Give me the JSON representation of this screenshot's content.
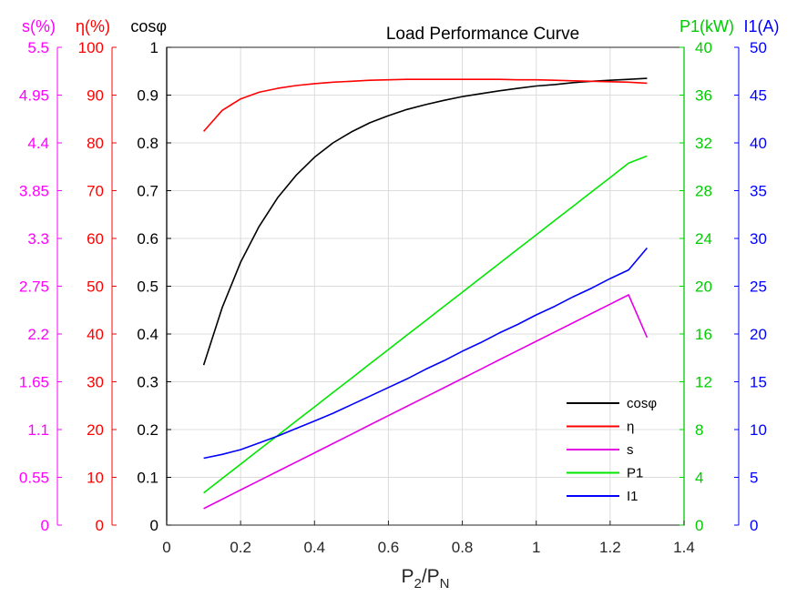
{
  "chart_data": {
    "type": "line",
    "title": "Load Performance Curve",
    "xlabel": {
      "base": "P",
      "sub1": "2",
      "sep": "/P",
      "sub2": "N"
    },
    "xlim": [
      0,
      1.4
    ],
    "xticks": [
      "0",
      "0.2",
      "0.4",
      "0.6",
      "0.8",
      "1",
      "1.2",
      "1.4"
    ],
    "grid": true,
    "legend_position": "lower-right",
    "x": [
      0.1,
      0.15,
      0.2,
      0.25,
      0.3,
      0.35,
      0.4,
      0.45,
      0.5,
      0.55,
      0.6,
      0.65,
      0.7,
      0.75,
      0.8,
      0.85,
      0.9,
      0.95,
      1.0,
      1.05,
      1.1,
      1.15,
      1.2,
      1.25,
      1.3
    ],
    "axes": [
      {
        "id": "s",
        "label": "s(%)",
        "side": "left",
        "color": "#ff00ff",
        "lim": [
          0,
          5.5
        ],
        "ticks": [
          "0",
          "0.55",
          "1.1",
          "1.65",
          "2.2",
          "2.75",
          "3.3",
          "3.85",
          "4.4",
          "4.95",
          "5.5"
        ]
      },
      {
        "id": "eta",
        "label": "η(%)",
        "side": "left",
        "color": "#ff0000",
        "lim": [
          0,
          100
        ],
        "ticks": [
          "0",
          "10",
          "20",
          "30",
          "40",
          "50",
          "60",
          "70",
          "80",
          "90",
          "100"
        ]
      },
      {
        "id": "cos",
        "label": "cosφ",
        "side": "left",
        "color": "#000000",
        "lim": [
          0,
          1
        ],
        "ticks": [
          "0",
          "0.1",
          "0.2",
          "0.3",
          "0.4",
          "0.5",
          "0.6",
          "0.7",
          "0.8",
          "0.9",
          "1"
        ]
      },
      {
        "id": "p1",
        "label": "P1(kW)",
        "side": "right",
        "color": "#00cc00",
        "lim": [
          0,
          40
        ],
        "ticks": [
          "0",
          "4",
          "8",
          "12",
          "16",
          "20",
          "24",
          "28",
          "32",
          "36",
          "40"
        ]
      },
      {
        "id": "i1",
        "label": "I1(A)",
        "side": "right",
        "color": "#0000ff",
        "lim": [
          0,
          50
        ],
        "ticks": [
          "0",
          "5",
          "10",
          "15",
          "20",
          "25",
          "30",
          "35",
          "40",
          "45",
          "50"
        ]
      }
    ],
    "series": [
      {
        "name": "cosφ",
        "axis": "cos",
        "color": "#000000",
        "values": [
          0.335,
          0.455,
          0.55,
          0.625,
          0.685,
          0.732,
          0.77,
          0.8,
          0.823,
          0.842,
          0.857,
          0.87,
          0.88,
          0.889,
          0.897,
          0.903,
          0.909,
          0.914,
          0.919,
          0.922,
          0.926,
          0.929,
          0.931,
          0.933,
          0.935
        ]
      },
      {
        "name": "η",
        "axis": "eta",
        "color": "#ff0000",
        "values": [
          82.4,
          86.8,
          89.2,
          90.6,
          91.4,
          92.0,
          92.4,
          92.7,
          92.9,
          93.1,
          93.2,
          93.3,
          93.3,
          93.3,
          93.3,
          93.3,
          93.3,
          93.2,
          93.2,
          93.1,
          93.0,
          92.9,
          92.8,
          92.7,
          92.5
        ]
      },
      {
        "name": "s",
        "axis": "s",
        "color": "#e600e6",
        "values": [
          0.19,
          0.297,
          0.404,
          0.511,
          0.618,
          0.725,
          0.832,
          0.939,
          1.046,
          1.153,
          1.26,
          1.367,
          1.474,
          1.581,
          1.688,
          1.795,
          1.902,
          2.009,
          2.116,
          2.223,
          2.33,
          2.437,
          2.544,
          2.651,
          2.16
        ]
      },
      {
        "name": "P1",
        "axis": "p1",
        "color": "#00e600",
        "values": [
          2.7,
          3.9,
          5.1,
          6.3,
          7.5,
          8.7,
          9.9,
          11.1,
          12.3,
          13.5,
          14.7,
          15.9,
          17.1,
          18.3,
          19.5,
          20.7,
          21.9,
          23.1,
          24.3,
          25.5,
          26.7,
          27.9,
          29.1,
          30.3,
          30.9
        ]
      },
      {
        "name": "I1",
        "axis": "i1",
        "color": "#0000ff",
        "values": [
          7.0,
          7.4,
          7.9,
          8.6,
          9.3,
          10.1,
          10.9,
          11.7,
          12.6,
          13.5,
          14.4,
          15.3,
          16.3,
          17.2,
          18.2,
          19.1,
          20.1,
          21.0,
          22.0,
          22.9,
          23.9,
          24.8,
          25.8,
          26.7,
          29.0
        ]
      }
    ]
  }
}
